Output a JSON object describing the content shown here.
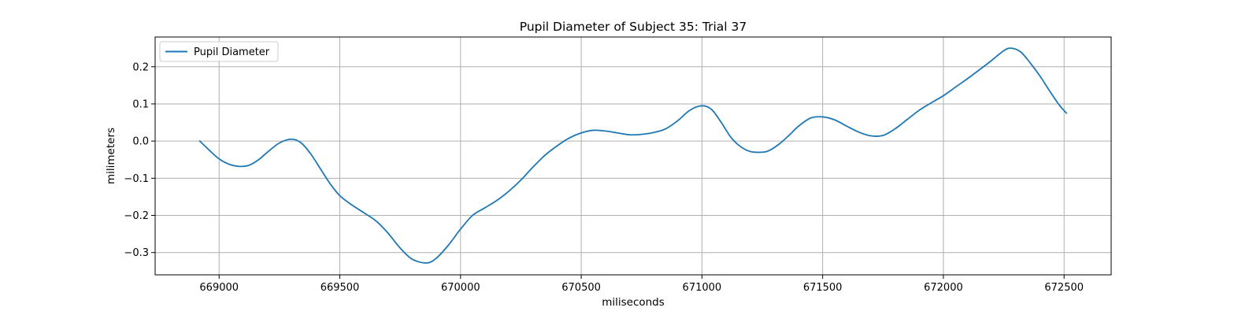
{
  "chart_data": {
    "type": "line",
    "title": "Pupil Diameter of Subject 35: Trial 37",
    "xlabel": "miliseconds",
    "ylabel": "milimeters",
    "xlim": [
      668735,
      672695
    ],
    "ylim": [
      -0.36,
      0.28
    ],
    "xticks": [
      669000,
      669500,
      670000,
      670500,
      671000,
      671500,
      672000,
      672500
    ],
    "yticks": [
      -0.3,
      -0.2,
      -0.1,
      0.0,
      0.1,
      0.2
    ],
    "ytick_labels": [
      "−0.3",
      "−0.2",
      "−0.1",
      "0.0",
      "0.1",
      "0.2"
    ],
    "grid": true,
    "legend_position": "top-left",
    "line_color": "#1f77b4",
    "series": [
      {
        "name": "Pupil Diameter",
        "x": [
          668920,
          668960,
          669000,
          669040,
          669080,
          669120,
          669160,
          669200,
          669250,
          669300,
          669340,
          669380,
          669420,
          669460,
          669500,
          669550,
          669600,
          669650,
          669700,
          669750,
          669800,
          669860,
          669900,
          669950,
          670000,
          670050,
          670100,
          670150,
          670200,
          670250,
          670300,
          670350,
          670400,
          670450,
          670500,
          670550,
          670600,
          670650,
          670700,
          670750,
          670800,
          670850,
          670900,
          670950,
          671000,
          671040,
          671080,
          671120,
          671160,
          671200,
          671250,
          671280,
          671320,
          671360,
          671400,
          671450,
          671500,
          671550,
          671600,
          671650,
          671700,
          671750,
          671800,
          671850,
          671900,
          671950,
          672000,
          672050,
          672100,
          672150,
          672200,
          672250,
          672280,
          672320,
          672360,
          672400,
          672440,
          672480,
          672510
        ],
        "y": [
          0.0,
          -0.025,
          -0.048,
          -0.062,
          -0.068,
          -0.066,
          -0.052,
          -0.03,
          -0.005,
          0.005,
          -0.005,
          -0.035,
          -0.075,
          -0.115,
          -0.147,
          -0.172,
          -0.193,
          -0.215,
          -0.248,
          -0.288,
          -0.318,
          -0.328,
          -0.315,
          -0.28,
          -0.237,
          -0.2,
          -0.18,
          -0.16,
          -0.135,
          -0.105,
          -0.07,
          -0.038,
          -0.013,
          0.008,
          0.022,
          0.029,
          0.027,
          0.022,
          0.017,
          0.018,
          0.023,
          0.033,
          0.055,
          0.083,
          0.095,
          0.085,
          0.05,
          0.01,
          -0.015,
          -0.028,
          -0.03,
          -0.025,
          -0.008,
          0.015,
          0.04,
          0.062,
          0.065,
          0.057,
          0.04,
          0.024,
          0.014,
          0.015,
          0.033,
          0.058,
          0.083,
          0.103,
          0.122,
          0.145,
          0.168,
          0.192,
          0.217,
          0.243,
          0.25,
          0.24,
          0.21,
          0.175,
          0.135,
          0.097,
          0.075
        ]
      }
    ]
  }
}
